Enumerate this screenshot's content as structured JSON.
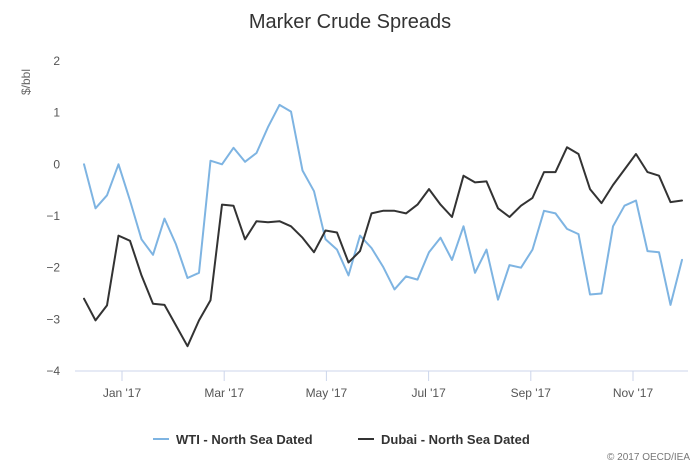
{
  "chart_data": {
    "type": "line",
    "title": "Marker Crude Spreads",
    "ylabel": "$/bbl",
    "ylim": [
      -4,
      2
    ],
    "yticks": [
      "2",
      "1",
      "0",
      "-1",
      "-2",
      "-3",
      "-4"
    ],
    "xtick_labels": [
      "Jan '17",
      "Mar '17",
      "May '17",
      "Jul '17",
      "Sep '17",
      "Nov '17"
    ],
    "grid": false,
    "legend": "bottom",
    "credit": "© 2017 OECD/IEA",
    "series": [
      {
        "name": "WTI - North Sea Dated",
        "color": "#7eb4e2",
        "values": [
          0.0,
          -0.85,
          -0.6,
          0.0,
          -0.7,
          -1.45,
          -1.75,
          -1.05,
          -1.55,
          -2.2,
          -2.1,
          0.07,
          0.0,
          0.32,
          0.05,
          0.22,
          0.72,
          1.15,
          1.02,
          -0.12,
          -0.52,
          -1.45,
          -1.65,
          -2.15,
          -1.38,
          -1.62,
          -1.98,
          -2.42,
          -2.17,
          -2.23,
          -1.7,
          -1.42,
          -1.85,
          -1.2,
          -2.1,
          -1.65,
          -2.62,
          -1.95,
          -2.0,
          -1.65,
          -0.9,
          -0.95,
          -1.25,
          -1.35,
          -2.52,
          -2.5,
          -1.2,
          -0.8,
          -0.7,
          -1.68,
          -1.7,
          -2.72,
          -1.85
        ]
      },
      {
        "name": "Dubai - North Sea Dated",
        "color": "#333333",
        "values": [
          -2.6,
          -3.02,
          -2.73,
          -1.38,
          -1.48,
          -2.15,
          -2.7,
          -2.72,
          -3.12,
          -3.52,
          -3.02,
          -2.63,
          -0.78,
          -0.8,
          -1.45,
          -1.1,
          -1.12,
          -1.1,
          -1.2,
          -1.42,
          -1.7,
          -1.28,
          -1.32,
          -1.9,
          -1.68,
          -0.95,
          -0.9,
          -0.9,
          -0.95,
          -0.78,
          -0.48,
          -0.78,
          -1.02,
          -0.22,
          -0.35,
          -0.33,
          -0.85,
          -1.02,
          -0.8,
          -0.65,
          -0.15,
          -0.15,
          0.33,
          0.2,
          -0.48,
          -0.75,
          -0.4,
          -0.1,
          0.2,
          -0.15,
          -0.22,
          -0.73,
          -0.7
        ]
      }
    ]
  }
}
